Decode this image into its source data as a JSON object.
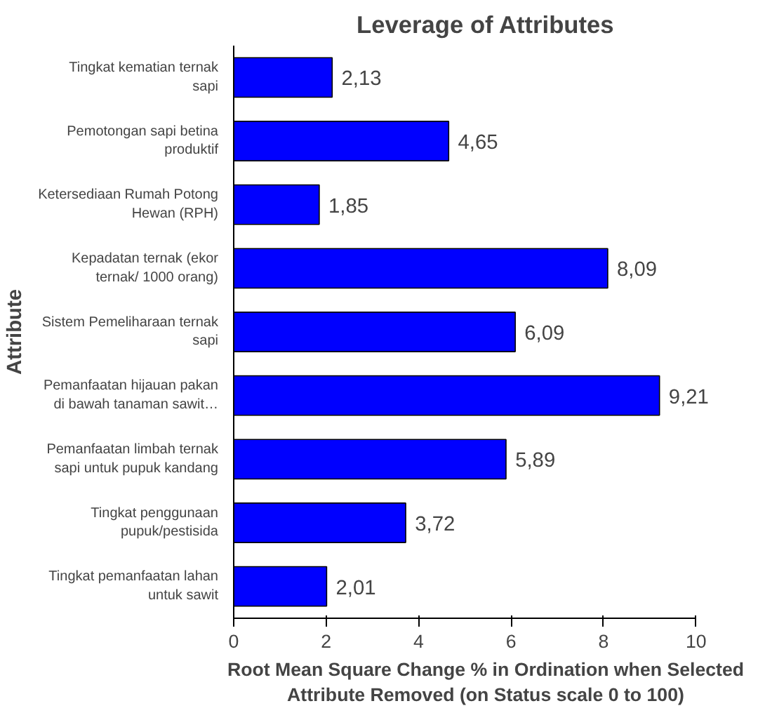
{
  "chart_data": {
    "type": "bar",
    "orientation": "horizontal",
    "title": "Leverage of Attributes",
    "xlabel": "Root Mean Square Change % in Ordination when Selected Attribute Removed (on Status scale 0 to 100)",
    "ylabel": "Attribute",
    "categories": [
      "Tingkat kematian ternak sapi",
      "Pemotongan sapi betina produktif",
      "Ketersediaan Rumah Potong Hewan (RPH)",
      "Kepadatan ternak (ekor ternak/ 1000 orang)",
      "Sistem Pemeliharaan ternak sapi",
      "Pemanfaatan hijauan pakan di bawah tanaman sawit…",
      "Pemanfaatan limbah ternak sapi untuk pupuk kandang",
      "Tingkat penggunaan pupuk/pestisida",
      "Tingkat pemanfaatan lahan untuk sawit"
    ],
    "values": [
      2.13,
      4.65,
      1.85,
      8.09,
      6.09,
      9.21,
      5.89,
      3.72,
      2.01
    ],
    "value_labels": [
      "2,13",
      "4,65",
      "1,85",
      "8,09",
      "6,09",
      "9,21",
      "5,89",
      "3,72",
      "2,01"
    ],
    "color": "#0000ff",
    "xlim": [
      0,
      10
    ],
    "xticks": [
      0,
      2,
      4,
      6,
      8,
      10
    ],
    "grid": false
  }
}
